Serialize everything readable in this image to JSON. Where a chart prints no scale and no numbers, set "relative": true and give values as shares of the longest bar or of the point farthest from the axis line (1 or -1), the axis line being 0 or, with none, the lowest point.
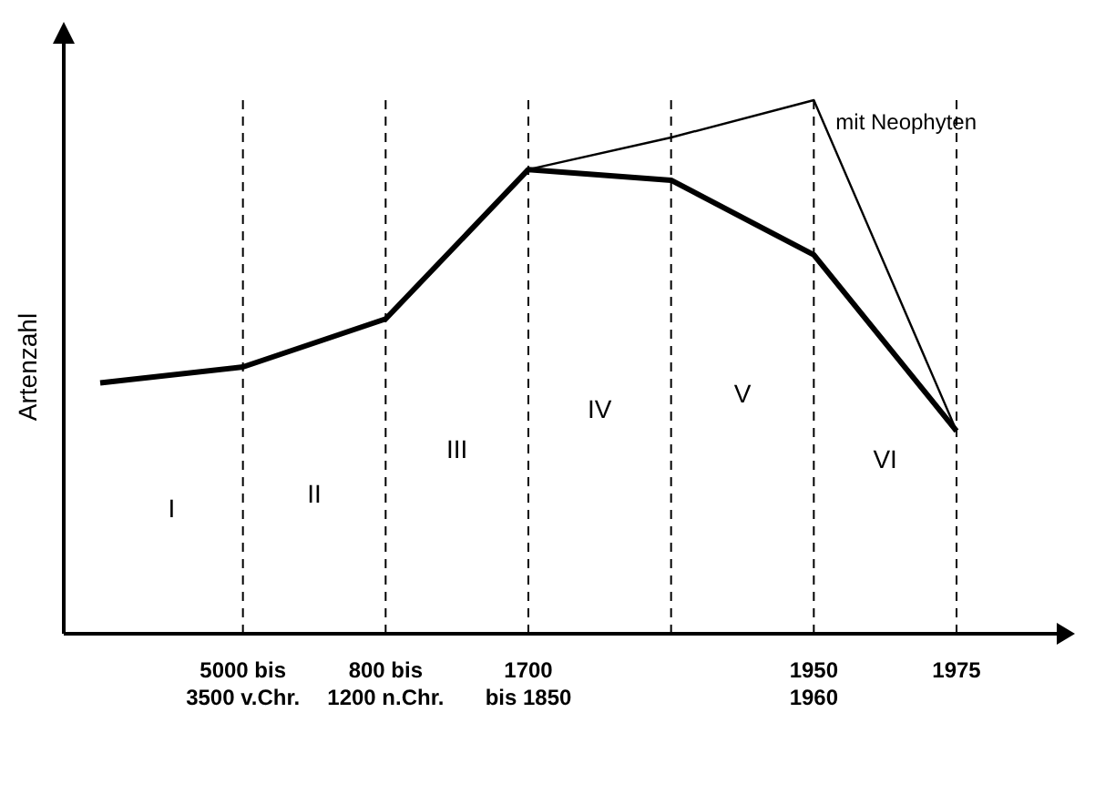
{
  "chart_data": {
    "type": "line",
    "relative": true,
    "ylabel": "Artenzahl",
    "categories": [
      null,
      "5000 bis\n3500 v.Chr.",
      "800 bis\n1200 n.Chr.",
      "1700\nbis 1850",
      null,
      "1950\n1960",
      "1975"
    ],
    "series": [
      {
        "color": "#000000",
        "values": [
          0.47,
          0.5,
          0.59,
          0.87,
          0.85,
          0.71,
          0.38
        ]
      },
      {
        "name": "mit Neophyten",
        "color": "#000000",
        "values": [
          null,
          null,
          null,
          0.87,
          0.93,
          1,
          0.38
        ]
      }
    ],
    "annotations": [
      "I",
      "II",
      "III",
      "IV",
      "V",
      "VI"
    ],
    "grid": "x",
    "marker": "none",
    "line_style": "solid"
  }
}
